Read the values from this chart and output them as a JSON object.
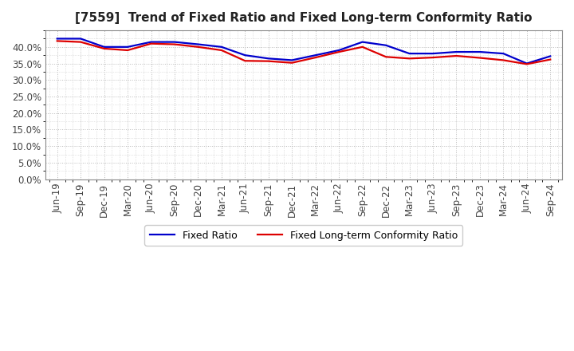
{
  "title": "[7559]  Trend of Fixed Ratio and Fixed Long-term Conformity Ratio",
  "x_labels": [
    "Jun-19",
    "Sep-19",
    "Dec-19",
    "Mar-20",
    "Jun-20",
    "Sep-20",
    "Dec-20",
    "Mar-21",
    "Jun-21",
    "Sep-21",
    "Dec-21",
    "Mar-22",
    "Jun-22",
    "Sep-22",
    "Dec-22",
    "Mar-23",
    "Jun-23",
    "Sep-23",
    "Dec-23",
    "Mar-24",
    "Jun-24",
    "Sep-24"
  ],
  "fixed_ratio": [
    0.425,
    0.425,
    0.4,
    0.4,
    0.415,
    0.415,
    0.408,
    0.4,
    0.375,
    0.365,
    0.36,
    0.375,
    0.39,
    0.415,
    0.405,
    0.38,
    0.38,
    0.385,
    0.385,
    0.38,
    0.35,
    0.372
  ],
  "fixed_lt_ratio": [
    0.418,
    0.415,
    0.395,
    0.39,
    0.41,
    0.408,
    0.4,
    0.39,
    0.358,
    0.357,
    0.352,
    0.368,
    0.385,
    0.4,
    0.37,
    0.365,
    0.368,
    0.373,
    0.367,
    0.36,
    0.348,
    0.362
  ],
  "fixed_ratio_color": "#0000CC",
  "fixed_lt_ratio_color": "#DD0000",
  "background_color": "#FFFFFF",
  "plot_bg_color": "#FFFFFF",
  "ylim": [
    0.0,
    0.45
  ],
  "yticks": [
    0.0,
    0.05,
    0.1,
    0.15,
    0.2,
    0.25,
    0.3,
    0.35,
    0.4
  ],
  "legend_fixed_ratio": "Fixed Ratio",
  "legend_fixed_lt_ratio": "Fixed Long-term Conformity Ratio",
  "grid_color": "#AAAAAA",
  "line_width": 1.6,
  "title_fontsize": 11,
  "tick_fontsize": 8.5,
  "legend_fontsize": 9
}
